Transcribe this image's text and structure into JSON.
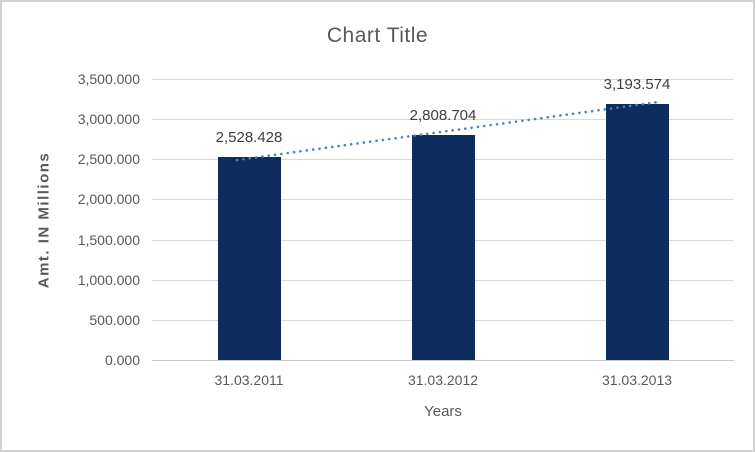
{
  "frame": {
    "background": "#ffffff",
    "border_color": "#d2d2d2"
  },
  "chart_data": {
    "type": "bar",
    "title": "Chart Title",
    "xlabel": "Years",
    "ylabel": "Amt. IN Millions",
    "categories": [
      "31.03.2011",
      "31.03.2012",
      "31.03.2013"
    ],
    "values": [
      2528.428,
      2808.704,
      3193.574
    ],
    "data_labels": [
      "2,528.428",
      "2,808.704",
      "3,193.574"
    ],
    "y_ticks": [
      {
        "value": 0,
        "label": "0.000"
      },
      {
        "value": 500,
        "label": "500.000"
      },
      {
        "value": 1000,
        "label": "1,000.000"
      },
      {
        "value": 1500,
        "label": "1,500.000"
      },
      {
        "value": 2000,
        "label": "2,000.000"
      },
      {
        "value": 2500,
        "label": "2,500.000"
      },
      {
        "value": 3000,
        "label": "3,000.000"
      },
      {
        "value": 3500,
        "label": "3,500.000"
      }
    ],
    "ylim": [
      0,
      3500
    ],
    "grid": true,
    "legend": "none",
    "colors": {
      "bar": "#0e2c5e",
      "trendline": "#4a80c4",
      "gridline": "#d9d9d9",
      "axis_text": "#595959",
      "data_label_text": "#3f3f3f"
    },
    "trendline": {
      "style": "dotted",
      "fit": "linear"
    }
  }
}
